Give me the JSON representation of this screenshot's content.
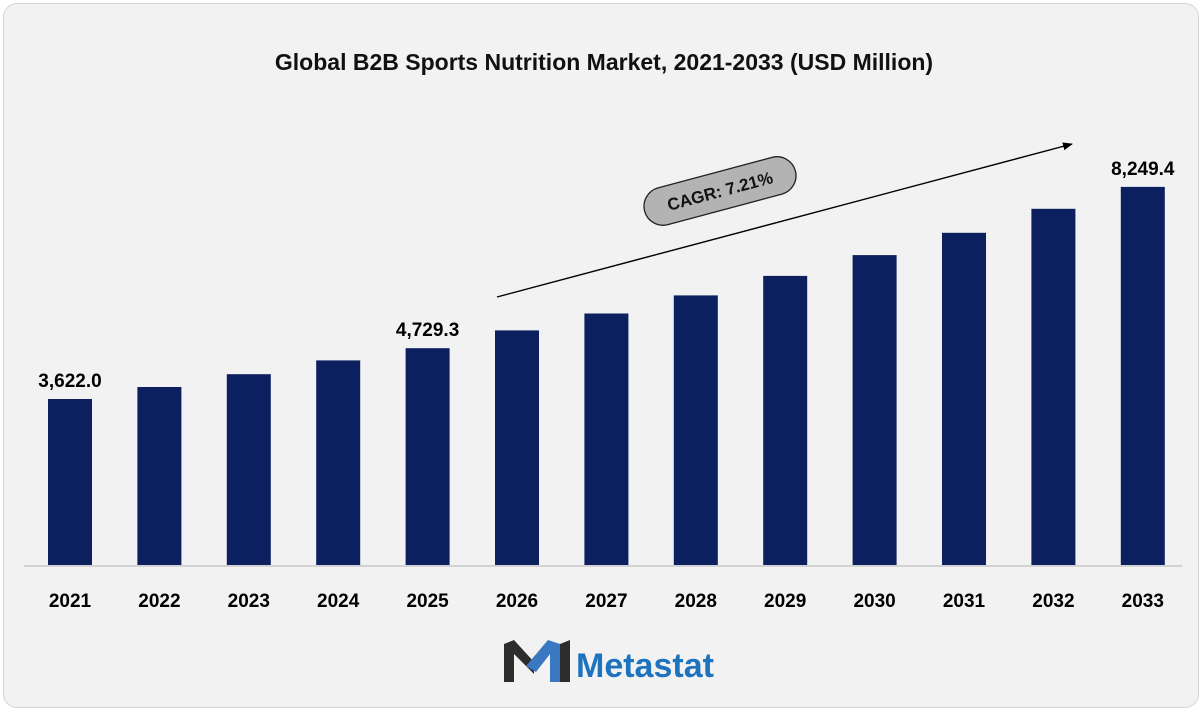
{
  "chart_data": {
    "type": "bar",
    "title": "Global B2B Sports Nutrition Market, 2021-2033 (USD Million)",
    "categories": [
      "2021",
      "2022",
      "2023",
      "2024",
      "2025",
      "2026",
      "2027",
      "2028",
      "2029",
      "2030",
      "2031",
      "2032",
      "2033"
    ],
    "values": [
      3622.0,
      3883,
      4163,
      4463,
      4729.3,
      5118,
      5487,
      5883,
      6307,
      6761,
      7248,
      7772,
      8249.4
    ],
    "data_labels": [
      {
        "category": "2021",
        "text": "3,622.0"
      },
      {
        "category": "2025",
        "text": "4,729.3"
      },
      {
        "category": "2033",
        "text": "8,249.4"
      }
    ],
    "annotation": "CAGR: 7.21%",
    "ylim": [
      0,
      9600
    ],
    "grid": false,
    "bar_color": "#0c1f5e"
  },
  "brand": {
    "name": "Metastat",
    "logo_icon": "metastat-m-logo-icon",
    "colors": {
      "text": "#1e73be",
      "mark_dark": "#2d2d2d",
      "mark_light": "#3a78c2"
    }
  }
}
